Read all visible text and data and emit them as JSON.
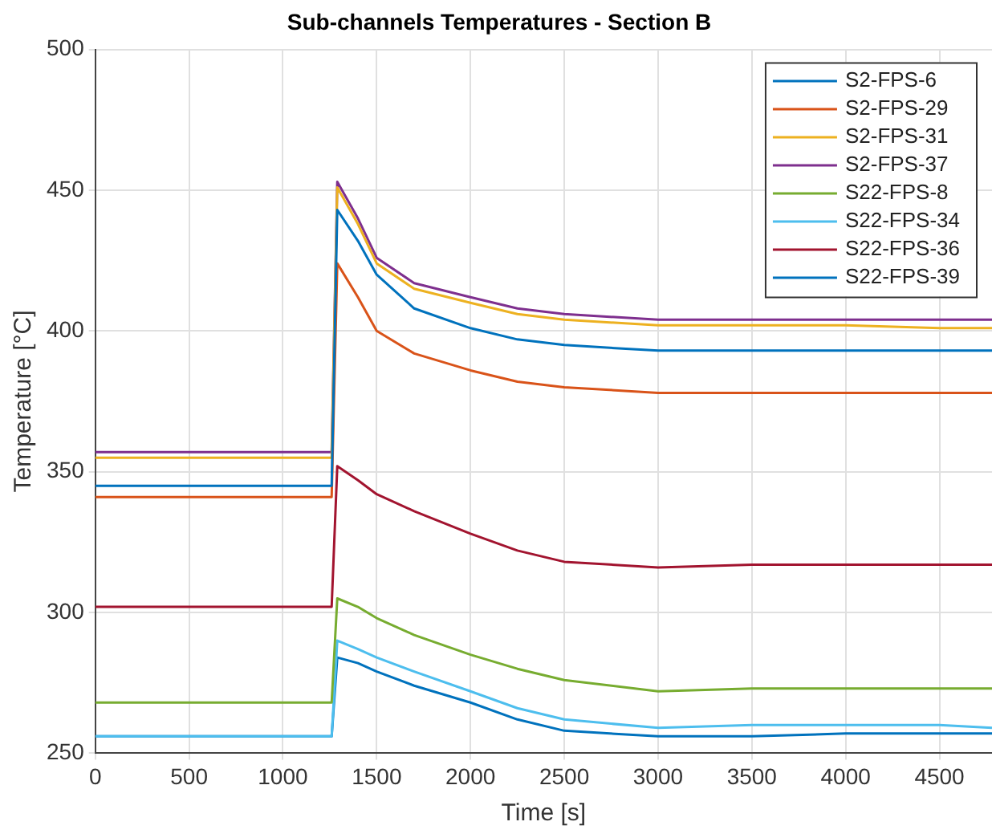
{
  "chart_data": {
    "type": "line",
    "title": "Sub-channels Temperatures - Section B",
    "xlabel": "Time [s]",
    "ylabel": "Temperature [°C]",
    "x": [
      0,
      500,
      1000,
      1260,
      1290,
      1400,
      1500,
      1700,
      2000,
      2250,
      2500,
      3000,
      3500,
      4000,
      4500,
      4780
    ],
    "xlim": [
      0,
      4780
    ],
    "xticks": [
      0,
      500,
      1000,
      1500,
      2000,
      2500,
      3000,
      3500,
      4000,
      4500
    ],
    "ylim": [
      250,
      500
    ],
    "yticks": [
      250,
      300,
      350,
      400,
      450,
      500
    ],
    "grid": true,
    "legend": "top right",
    "marker": "none",
    "line_style": "solid",
    "series": [
      {
        "name": "S2-FPS-6",
        "color": "#0072bd",
        "values": [
          345,
          345,
          345,
          345,
          443,
          432,
          420,
          408,
          401,
          397,
          395,
          393,
          393,
          393,
          393,
          393
        ]
      },
      {
        "name": "S2-FPS-29",
        "color": "#d95319",
        "values": [
          341,
          341,
          341,
          341,
          424,
          412,
          400,
          392,
          386,
          382,
          380,
          378,
          378,
          378,
          378,
          378
        ]
      },
      {
        "name": "S2-FPS-31",
        "color": "#edb120",
        "values": [
          355,
          355,
          355,
          355,
          451,
          438,
          424,
          415,
          410,
          406,
          404,
          402,
          402,
          402,
          401,
          401
        ]
      },
      {
        "name": "S2-FPS-37",
        "color": "#7e2f8e",
        "values": [
          357,
          357,
          357,
          357,
          453,
          440,
          426,
          417,
          412,
          408,
          406,
          404,
          404,
          404,
          404,
          404
        ]
      },
      {
        "name": "S22-FPS-8",
        "color": "#77ac30",
        "values": [
          268,
          268,
          268,
          268,
          305,
          302,
          298,
          292,
          285,
          280,
          276,
          272,
          273,
          273,
          273,
          273
        ]
      },
      {
        "name": "S22-FPS-34",
        "color": "#4dbeee",
        "values": [
          256,
          256,
          256,
          256,
          290,
          287,
          284,
          279,
          272,
          266,
          262,
          259,
          260,
          260,
          260,
          259
        ]
      },
      {
        "name": "S22-FPS-36",
        "color": "#a2142f",
        "values": [
          302,
          302,
          302,
          302,
          352,
          347,
          342,
          336,
          328,
          322,
          318,
          316,
          317,
          317,
          317,
          317
        ]
      },
      {
        "name": "S22-FPS-39",
        "color": "#0072bd",
        "values": [
          256,
          256,
          256,
          256,
          284,
          282,
          279,
          274,
          268,
          262,
          258,
          256,
          256,
          257,
          257,
          257
        ]
      }
    ]
  }
}
